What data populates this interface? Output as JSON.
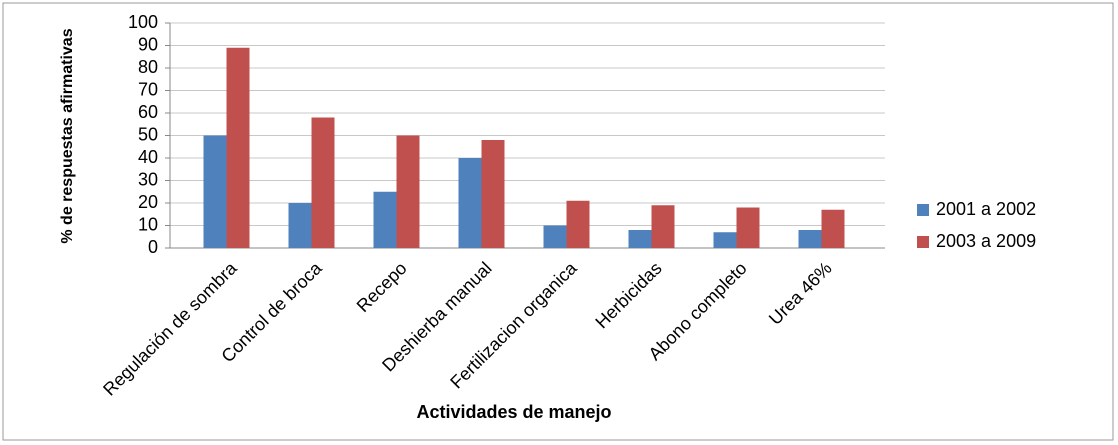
{
  "chart_data": {
    "type": "bar",
    "x_label": "Actividades de manejo",
    "y_label": "% de respuestas afirmativas",
    "categories": [
      "Regulación de sombra",
      "Control de broca",
      "Recepo",
      "Deshierba manual",
      "Fertilizacion organica",
      "Herbicidas",
      "Abono completo",
      "Urea 46%"
    ],
    "series": [
      {
        "name": "2001 a 2002",
        "color": "#4f81bd",
        "values": [
          50,
          20,
          25,
          40,
          10,
          8,
          7,
          8
        ]
      },
      {
        "name": "2003 a 2009",
        "color": "#c0504d",
        "values": [
          89,
          58,
          50,
          48,
          21,
          19,
          18,
          17
        ]
      }
    ],
    "ylim": [
      0,
      100
    ],
    "yticks": [
      0,
      10,
      20,
      30,
      40,
      50,
      60,
      70,
      80,
      90,
      100
    ],
    "grid": true,
    "legend": "right"
  }
}
